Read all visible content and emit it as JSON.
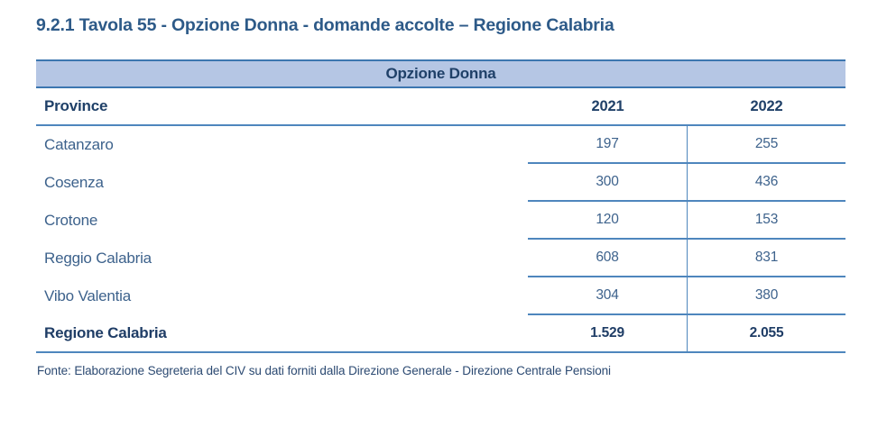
{
  "title": "9.2.1 Tavola 55 - Opzione Donna - domande accolte – Regione Calabria",
  "table": {
    "band_title": "Opzione Donna",
    "columns": [
      "Province",
      "2021",
      "2022"
    ],
    "rows": [
      {
        "province": "Catanzaro",
        "y2021": "197",
        "y2022": "255"
      },
      {
        "province": "Cosenza",
        "y2021": "300",
        "y2022": "436"
      },
      {
        "province": "Crotone",
        "y2021": "120",
        "y2022": "153"
      },
      {
        "province": "Reggio Calabria",
        "y2021": "608",
        "y2022": "831"
      },
      {
        "province": "Vibo Valentia",
        "y2021": "304",
        "y2022": "380"
      }
    ],
    "total": {
      "province": "Regione Calabria",
      "y2021": "1.529",
      "y2022": "2.055"
    }
  },
  "footer": "Fonte: Elaborazione Segreteria del CIV su dati forniti dalla Direzione Generale - Direzione Centrale Pensioni",
  "colors": {
    "accent_band_bg": "#b5c6e4",
    "band_border": "#3c76b0",
    "line": "#4e86bd",
    "heading_text": "#1f4068",
    "title_text": "#2d5a88",
    "body_text": "#3d628c",
    "total_text": "#1f3d66",
    "footer_text": "#2c4a72"
  }
}
